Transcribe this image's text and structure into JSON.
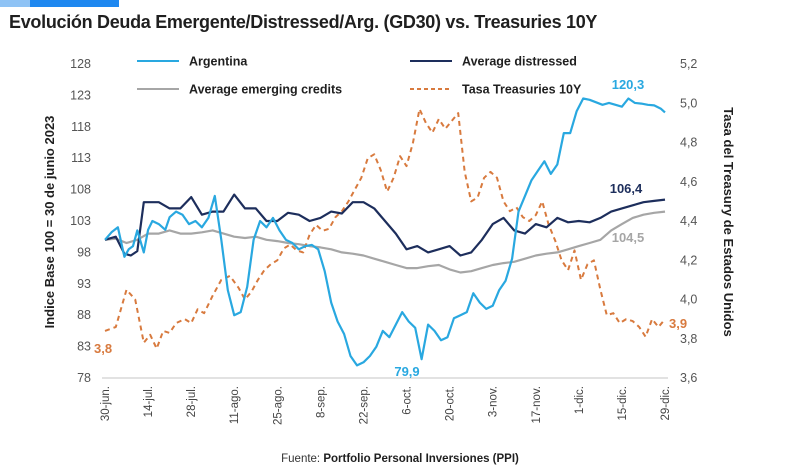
{
  "header": {
    "title": "Evolución Deuda Emergente/Distressed/Arg. (GD30) vs. Treasuries 10Y",
    "accent_color": "#1e88f0"
  },
  "footer": {
    "source_prefix": "Fuente: ",
    "source_name": "Portfolio Personal Inversiones (PPI)"
  },
  "chart_data": {
    "type": "line",
    "title": "Evolución Deuda Emergente/Distressed/Arg. (GD30) vs. Treasuries 10Y",
    "xlabel": "",
    "ylabel": "Indice Base 100 = 30 de junio 2023",
    "y2label": "Tasa del Treasury de Estados Unidos",
    "ylim": [
      78,
      128
    ],
    "y2lim": [
      3.6,
      5.2
    ],
    "yticks": [
      "128",
      "123",
      "118",
      "113",
      "108",
      "103",
      "98",
      "93",
      "88",
      "83",
      "78"
    ],
    "y2ticks": [
      "5,2",
      "5,0",
      "4,8",
      "4,6",
      "4,4",
      "4,2",
      "4,0",
      "3,8",
      "3,6"
    ],
    "xticks": [
      "30-jun.",
      "14-jul.",
      "28-jul.",
      "11-ago.",
      "25-ago.",
      "8-sep.",
      "22-sep.",
      "6-oct.",
      "20-oct.",
      "3-nov.",
      "17-nov.",
      "1-dic.",
      "15-dic.",
      "29-dic."
    ],
    "grid": false,
    "legend_position": "top",
    "x_index_range": [
      0,
      26
    ],
    "series": [
      {
        "name": "Argentina",
        "axis": "left",
        "color": "#29a8e0",
        "dash": false,
        "end_label": "120,3",
        "min_label": "79,9",
        "x": [
          0,
          0.3,
          0.6,
          0.9,
          1.1,
          1.3,
          1.5,
          1.8,
          2.0,
          2.2,
          2.5,
          2.8,
          3.0,
          3.3,
          3.6,
          3.9,
          4.2,
          4.5,
          4.8,
          5.1,
          5.4,
          5.7,
          6.0,
          6.3,
          6.6,
          6.9,
          7.2,
          7.5,
          7.8,
          8.1,
          8.4,
          8.7,
          9.0,
          9.3,
          9.6,
          9.9,
          10.2,
          10.5,
          10.8,
          11.1,
          11.4,
          11.7,
          12.0,
          12.3,
          12.6,
          12.9,
          13.2,
          13.5,
          13.8,
          14.1,
          14.4,
          14.7,
          15.0,
          15.3,
          15.6,
          15.9,
          16.2,
          16.5,
          16.8,
          17.1,
          17.4,
          17.7,
          18.0,
          18.3,
          18.6,
          18.9,
          19.2,
          19.5,
          19.8,
          20.1,
          20.4,
          20.7,
          21.0,
          21.3,
          21.6,
          21.9,
          22.2,
          22.5,
          22.8,
          23.1,
          23.4,
          23.7,
          24.0,
          24.3,
          24.6,
          24.9,
          25.2,
          25.5,
          25.8,
          26.0
        ],
        "values": [
          100.0,
          101.2,
          102.0,
          97.3,
          98.5,
          99.0,
          101.5,
          98.0,
          101.6,
          103.0,
          102.5,
          101.6,
          103.6,
          104.5,
          104.0,
          102.5,
          103.0,
          102.0,
          103.5,
          107.0,
          100.0,
          92.0,
          88.0,
          88.5,
          92.5,
          100.0,
          103.0,
          102.0,
          103.5,
          101.5,
          100.0,
          99.5,
          98.5,
          99.0,
          99.2,
          98.5,
          95.0,
          90.0,
          87.0,
          85.0,
          81.5,
          80.0,
          80.5,
          81.5,
          83.0,
          85.5,
          84.5,
          86.5,
          88.5,
          87.0,
          86.0,
          81.0,
          86.5,
          85.5,
          84.0,
          84.5,
          87.5,
          88.0,
          88.5,
          91.5,
          90.0,
          89.0,
          89.5,
          92.0,
          93.5,
          97.0,
          104.5,
          107.0,
          109.5,
          111.0,
          112.5,
          110.5,
          112.0,
          117.0,
          117.0,
          120.5,
          122.5,
          122.3,
          121.9,
          121.5,
          121.8,
          121.5,
          121.2,
          122.5,
          121.8,
          121.7,
          121.5,
          121.4,
          120.9,
          120.3
        ]
      },
      {
        "name": "Average distressed",
        "axis": "left",
        "color": "#1d2e5c",
        "dash": false,
        "end_label": "106,4",
        "x": [
          0,
          0.5,
          0.9,
          1.2,
          1.5,
          1.8,
          2.1,
          2.5,
          3.0,
          3.5,
          4.0,
          4.5,
          5.0,
          5.5,
          6.0,
          6.5,
          7.0,
          7.5,
          8.0,
          8.5,
          9.0,
          9.5,
          10.0,
          10.5,
          11.0,
          11.5,
          12.0,
          12.5,
          13.0,
          13.5,
          14.0,
          14.5,
          15.0,
          15.5,
          16.0,
          16.5,
          17.0,
          17.5,
          18.0,
          18.5,
          19.0,
          19.5,
          20.0,
          20.5,
          21.0,
          21.5,
          22.0,
          22.5,
          23.0,
          23.5,
          24.0,
          24.5,
          25.0,
          25.5,
          26.0
        ],
        "values": [
          100.0,
          100.5,
          97.8,
          97.5,
          98.2,
          106.0,
          106.0,
          106.0,
          105.0,
          105.0,
          106.8,
          104.0,
          104.5,
          104.5,
          107.2,
          105.0,
          105.0,
          103.0,
          103.0,
          104.3,
          104.0,
          103.0,
          103.5,
          104.5,
          104.2,
          106.0,
          106.0,
          105.0,
          103.0,
          101.0,
          98.5,
          99.0,
          98.0,
          98.5,
          99.0,
          97.5,
          98.0,
          100.0,
          102.5,
          103.5,
          101.5,
          101.0,
          102.5,
          102.0,
          103.5,
          102.8,
          103.0,
          102.8,
          103.5,
          104.5,
          105.0,
          105.5,
          106.0,
          106.2,
          106.4
        ]
      },
      {
        "name": "Average emerging credits",
        "axis": "left",
        "color": "#a6a6a6",
        "dash": false,
        "end_label": "104,5",
        "x": [
          0,
          0.5,
          1.0,
          1.5,
          2.0,
          2.5,
          3.0,
          3.5,
          4.0,
          4.5,
          5.0,
          5.5,
          6.0,
          6.5,
          7.0,
          7.5,
          8.0,
          8.5,
          9.0,
          9.5,
          10.0,
          10.5,
          11.0,
          11.5,
          12.0,
          12.5,
          13.0,
          13.5,
          14.0,
          14.5,
          15.0,
          15.5,
          16.0,
          16.5,
          17.0,
          17.5,
          18.0,
          18.5,
          19.0,
          19.5,
          20.0,
          20.5,
          21.0,
          21.5,
          22.0,
          22.5,
          23.0,
          23.5,
          24.0,
          24.5,
          25.0,
          25.5,
          26.0
        ],
        "values": [
          100.0,
          100.2,
          99.5,
          100.0,
          101.0,
          101.0,
          101.5,
          101.0,
          101.0,
          101.2,
          101.5,
          101.0,
          100.5,
          100.3,
          100.5,
          100.0,
          99.8,
          99.5,
          99.3,
          99.0,
          98.8,
          98.5,
          98.0,
          97.8,
          97.5,
          97.0,
          96.5,
          96.0,
          95.5,
          95.5,
          95.8,
          96.0,
          95.3,
          94.8,
          95.0,
          95.5,
          96.0,
          96.3,
          96.5,
          97.0,
          97.5,
          97.8,
          98.0,
          98.5,
          99.0,
          99.5,
          100.0,
          101.5,
          102.5,
          103.5,
          104.0,
          104.3,
          104.5
        ]
      },
      {
        "name": "Tasa Treasuries 10Y",
        "axis": "right",
        "color": "#d87a3e",
        "dash": true,
        "start_label": "3,8",
        "end_label": "3,9",
        "x": [
          0,
          0.5,
          1.0,
          1.4,
          1.8,
          2.1,
          2.4,
          2.7,
          3.0,
          3.3,
          3.7,
          4.0,
          4.3,
          4.6,
          5.0,
          5.4,
          5.8,
          6.2,
          6.5,
          6.8,
          7.1,
          7.4,
          7.7,
          8.0,
          8.3,
          8.6,
          8.9,
          9.2,
          9.5,
          9.8,
          10.1,
          10.4,
          10.7,
          11.0,
          11.3,
          11.6,
          11.9,
          12.2,
          12.5,
          12.8,
          13.1,
          13.4,
          13.7,
          14.0,
          14.3,
          14.6,
          14.9,
          15.2,
          15.5,
          15.8,
          16.1,
          16.4,
          16.7,
          17.0,
          17.3,
          17.6,
          17.9,
          18.2,
          18.5,
          18.8,
          19.1,
          19.4,
          19.7,
          20.0,
          20.3,
          20.6,
          20.9,
          21.2,
          21.5,
          21.8,
          22.1,
          22.4,
          22.7,
          23.0,
          23.3,
          23.6,
          23.9,
          24.2,
          24.5,
          24.8,
          25.1,
          25.4,
          25.7,
          26.0
        ],
        "values": [
          3.84,
          3.86,
          4.05,
          4.0,
          3.78,
          3.82,
          3.75,
          3.84,
          3.83,
          3.88,
          3.9,
          3.88,
          3.95,
          3.93,
          4.02,
          4.1,
          4.12,
          4.06,
          4.0,
          4.04,
          4.1,
          4.15,
          4.18,
          4.2,
          4.26,
          4.28,
          4.25,
          4.24,
          4.33,
          4.38,
          4.35,
          4.36,
          4.42,
          4.45,
          4.5,
          4.56,
          4.62,
          4.72,
          4.74,
          4.66,
          4.55,
          4.62,
          4.73,
          4.68,
          4.8,
          4.97,
          4.9,
          4.85,
          4.92,
          4.87,
          4.91,
          4.95,
          4.65,
          4.5,
          4.52,
          4.62,
          4.65,
          4.62,
          4.5,
          4.45,
          4.47,
          4.42,
          4.4,
          4.43,
          4.5,
          4.38,
          4.3,
          4.2,
          4.15,
          4.25,
          4.1,
          4.18,
          4.2,
          4.05,
          3.92,
          3.93,
          3.88,
          3.9,
          3.89,
          3.86,
          3.81,
          3.9,
          3.86,
          3.9
        ]
      }
    ],
    "data_labels": [
      {
        "series": "Argentina",
        "text": "120,3"
      },
      {
        "series": "Argentina",
        "text": "79,9"
      },
      {
        "series": "Average distressed",
        "text": "106,4"
      },
      {
        "series": "Average emerging credits",
        "text": "104,5"
      },
      {
        "series": "Tasa Treasuries 10Y",
        "text": "3,8"
      },
      {
        "series": "Tasa Treasuries 10Y",
        "text": "3,9"
      }
    ]
  }
}
